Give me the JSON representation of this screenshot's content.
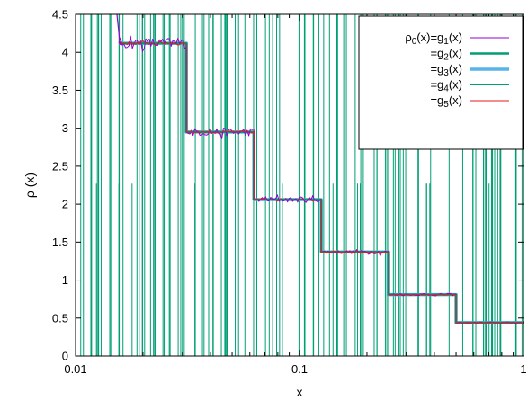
{
  "chart_data": {
    "type": "line",
    "xscale": "log",
    "xlim": [
      0.01,
      1
    ],
    "ylim": [
      0,
      4.5
    ],
    "xlabel": "x",
    "ylabel": "ρ (x)",
    "grid": false,
    "legend_position": "top-right",
    "x_ticks": [
      "0.01",
      "0.1",
      "1"
    ],
    "y_ticks": [
      "0",
      "0.5",
      "1",
      "1.5",
      "2",
      "2.5",
      "3",
      "3.5",
      "4",
      "4.5"
    ],
    "steps": [
      {
        "x_from": 0.0156,
        "x_to": 0.03125,
        "y": 4.12
      },
      {
        "x_from": 0.03125,
        "x_to": 0.0625,
        "y": 2.95
      },
      {
        "x_from": 0.0625,
        "x_to": 0.125,
        "y": 2.06
      },
      {
        "x_from": 0.125,
        "x_to": 0.25,
        "y": 1.37
      },
      {
        "x_from": 0.25,
        "x_to": 0.5,
        "y": 0.81
      },
      {
        "x_from": 0.5,
        "x_to": 1.0,
        "y": 0.44
      }
    ],
    "series": [
      {
        "label_main": "ρ",
        "label_sub": "0",
        "label_mid": "(x)=g",
        "label_sub2": "1",
        "label_end": "(x)",
        "color": "#9400d3",
        "width": 1
      },
      {
        "label_main": "",
        "label_sub": "",
        "label_mid": "=g",
        "label_sub2": "2",
        "label_end": "(x)",
        "color": "#009e73",
        "width": 2.5
      },
      {
        "label_main": "",
        "label_sub": "",
        "label_mid": "=g",
        "label_sub2": "3",
        "label_end": "(x)",
        "color": "#56b4e9",
        "width": 3.5
      },
      {
        "label_main": "",
        "label_sub": "",
        "label_mid": "=g",
        "label_sub2": "4",
        "label_end": "(x)",
        "color": "#009e73",
        "width": 1
      },
      {
        "label_main": "",
        "label_sub": "",
        "label_mid": "=g",
        "label_sub2": "5",
        "label_end": "(x)",
        "color": "#e41a1c",
        "width": 1
      }
    ]
  }
}
